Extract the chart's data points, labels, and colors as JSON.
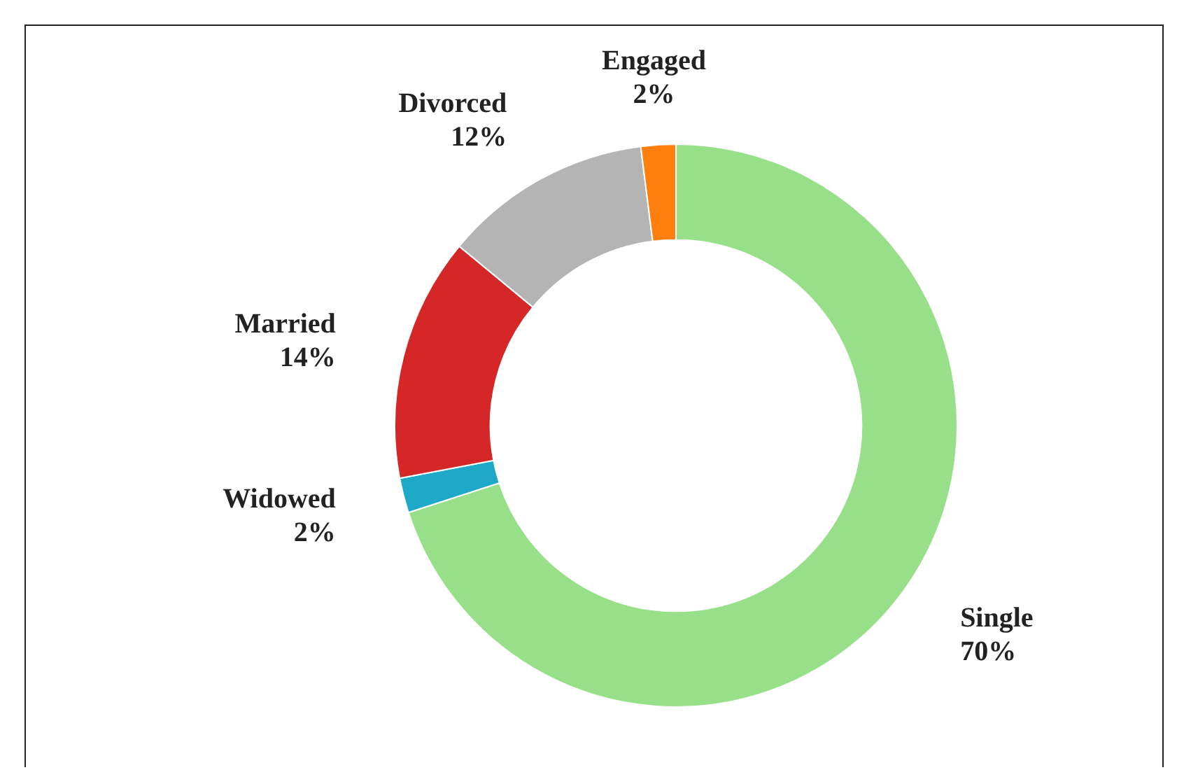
{
  "chart_data": {
    "type": "donut",
    "categories": [
      "Single",
      "Widowed",
      "Married",
      "Divorced",
      "Engaged"
    ],
    "values": [
      70,
      2,
      14,
      12,
      2
    ],
    "colors": [
      "#98df8a",
      "#1fa9c9",
      "#d62728",
      "#b4b4b4",
      "#ff7f0e"
    ],
    "value_labels": [
      "70%",
      "2%",
      "14%",
      "12%",
      "2%"
    ]
  }
}
